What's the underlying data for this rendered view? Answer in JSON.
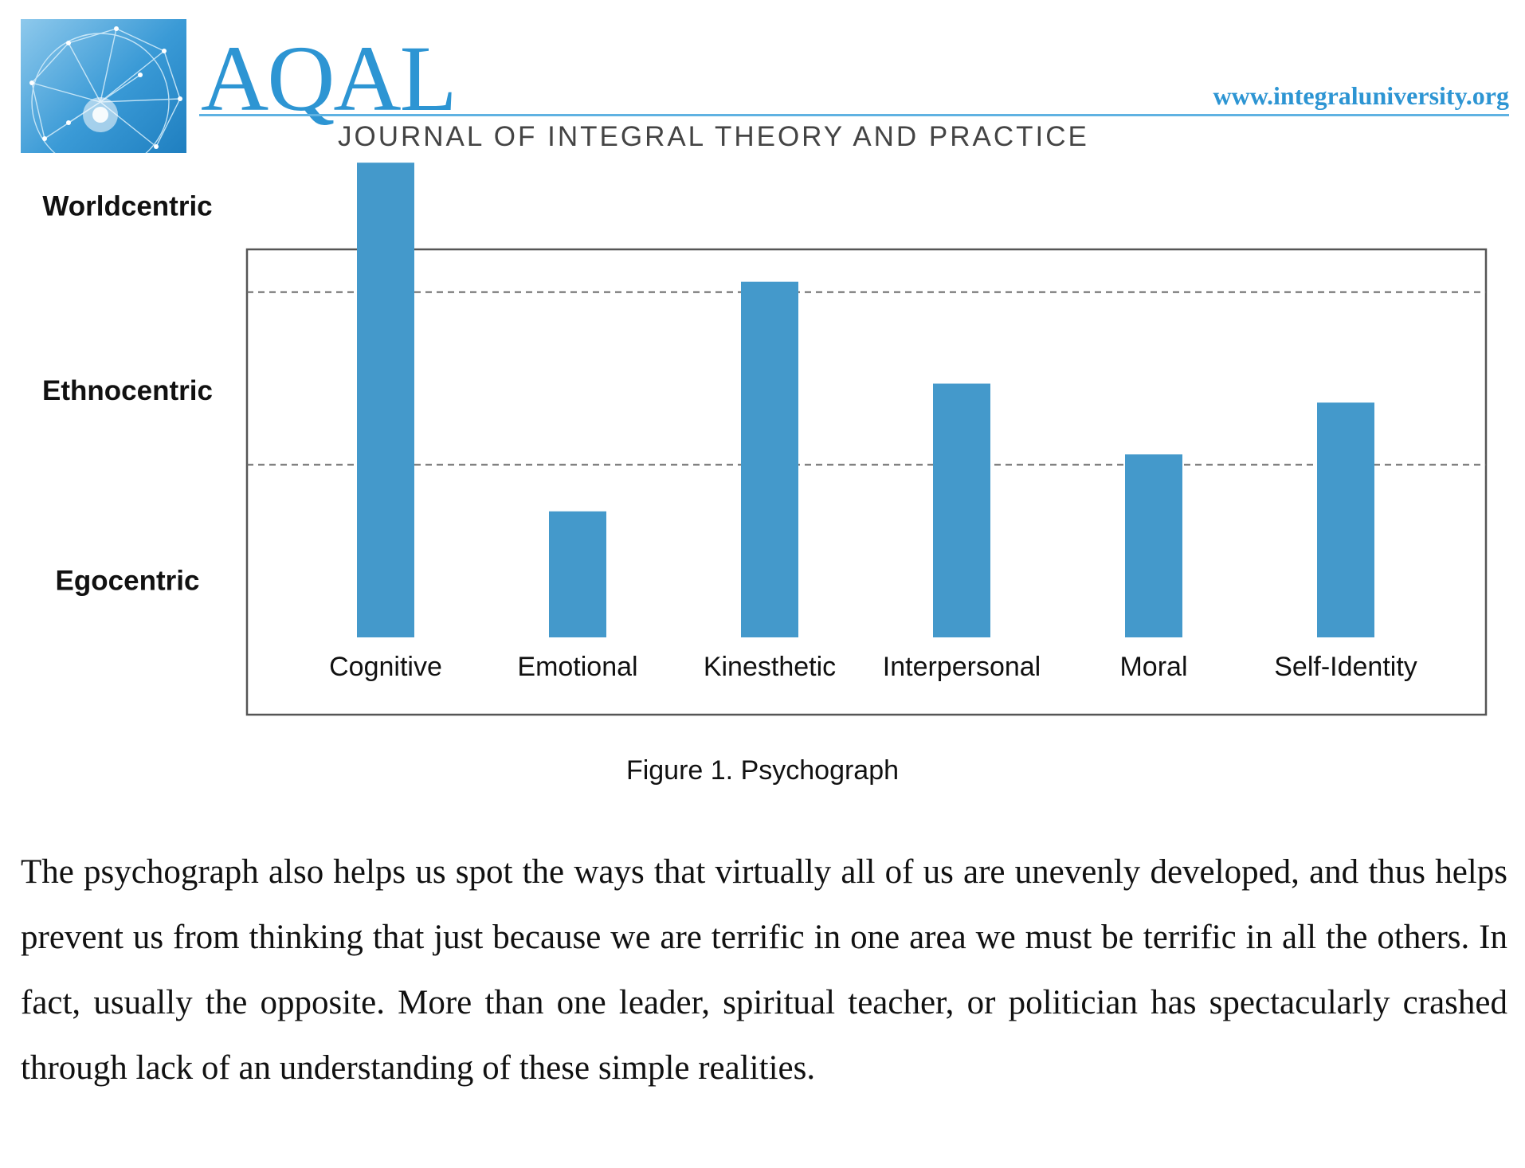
{
  "header": {
    "brand": "AQAL",
    "journal": "JOURNAL OF INTEGRAL THEORY AND PRACTICE",
    "url": "www.integraluniversity.org",
    "logo_icon": "network-globe-icon",
    "accent_color": "#2d95d3"
  },
  "chart_data": {
    "type": "bar",
    "categories": [
      "Cognitive",
      "Emotional",
      "Kinesthetic",
      "Interpersonal",
      "Moral",
      "Self-Identity"
    ],
    "values": [
      2.75,
      0.73,
      2.06,
      1.47,
      1.06,
      1.36
    ],
    "y_levels": [
      "Egocentric",
      "Ethnocentric",
      "Worldcentric"
    ],
    "ylim": [
      0,
      3
    ],
    "gridlines": [
      1,
      2
    ],
    "grid_style": "dashed",
    "bar_color": "#4499cb",
    "legend": "none"
  },
  "caption": "Figure 1. Psychograph",
  "body_text": "The psychograph also helps us spot the ways that virtually all of us are unevenly developed, and thus helps prevent us from thinking that just because we are terrific in one area we must be terrific in all the others. In fact, usually the opposite. More than one leader, spiritual teacher, or politician has spectacularly crashed through lack of an understanding of these simple realities."
}
